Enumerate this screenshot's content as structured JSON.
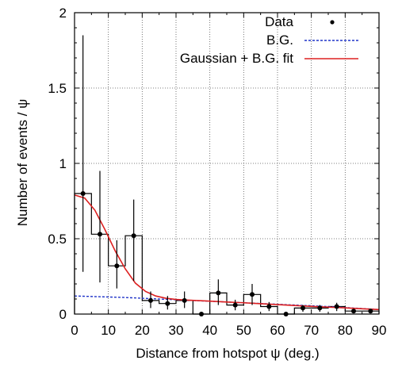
{
  "chart_data": {
    "type": "scatter",
    "title": "",
    "xlabel": "Distance from hotspot ψ (deg.)",
    "ylabel": "Number of events / ψ",
    "xlim": [
      0,
      90
    ],
    "ylim": [
      0,
      2
    ],
    "x_ticks": [
      0,
      10,
      20,
      30,
      40,
      50,
      60,
      70,
      80,
      90
    ],
    "y_ticks": [
      0,
      0.5,
      1,
      1.5,
      2
    ],
    "x_tick_labels": [
      "0",
      "10",
      "20",
      "30",
      "40",
      "50",
      "60",
      "70",
      "80",
      "90"
    ],
    "y_tick_labels": [
      "0",
      "0.5",
      "1",
      "1.5",
      "2"
    ],
    "grid": true,
    "legend_position": "top-right",
    "legend": [
      "Data",
      "B.G.",
      "Gaussian + B.G. fit"
    ],
    "series": [
      {
        "name": "Data",
        "kind": "points_with_errors",
        "bin_width": 5,
        "x": [
          2.5,
          7.5,
          12.5,
          17.5,
          22.5,
          27.5,
          32.5,
          37.5,
          42.5,
          47.5,
          52.5,
          57.5,
          62.5,
          67.5,
          72.5,
          77.5,
          82.5,
          87.5
        ],
        "y": [
          0.8,
          0.53,
          0.32,
          0.52,
          0.09,
          0.07,
          0.09,
          0.0,
          0.14,
          0.06,
          0.13,
          0.05,
          0.0,
          0.04,
          0.04,
          0.05,
          0.02,
          0.02
        ],
        "y_err_low": [
          0.52,
          0.32,
          0.15,
          0.3,
          0.05,
          0.04,
          0.05,
          0.0,
          0.08,
          0.035,
          0.07,
          0.03,
          0.0,
          0.025,
          0.025,
          0.03,
          0.012,
          0.012
        ],
        "y_err_high": [
          1.05,
          0.42,
          0.17,
          0.24,
          0.06,
          0.05,
          0.06,
          0.0,
          0.09,
          0.035,
          0.07,
          0.03,
          0.0,
          0.02,
          0.02,
          0.025,
          0.008,
          0.008
        ],
        "color": "#000000"
      },
      {
        "name": "B.G.",
        "kind": "dashed_line",
        "x": [
          0,
          15,
          30,
          45,
          60,
          75,
          90
        ],
        "y": [
          0.12,
          0.11,
          0.095,
          0.08,
          0.065,
          0.05,
          0.03
        ],
        "color": "#1f33c8"
      },
      {
        "name": "Gaussian + B.G. fit",
        "kind": "line",
        "x": [
          0,
          3,
          6,
          9,
          12,
          15,
          18,
          21,
          24,
          27,
          30,
          33,
          36,
          40,
          45,
          50,
          55,
          60,
          65,
          70,
          75,
          80,
          85,
          90
        ],
        "y": [
          0.79,
          0.77,
          0.69,
          0.56,
          0.42,
          0.3,
          0.205,
          0.15,
          0.12,
          0.105,
          0.097,
          0.093,
          0.09,
          0.086,
          0.08,
          0.075,
          0.069,
          0.063,
          0.057,
          0.051,
          0.046,
          0.041,
          0.035,
          0.03
        ],
        "color": "#dd2020"
      }
    ]
  }
}
